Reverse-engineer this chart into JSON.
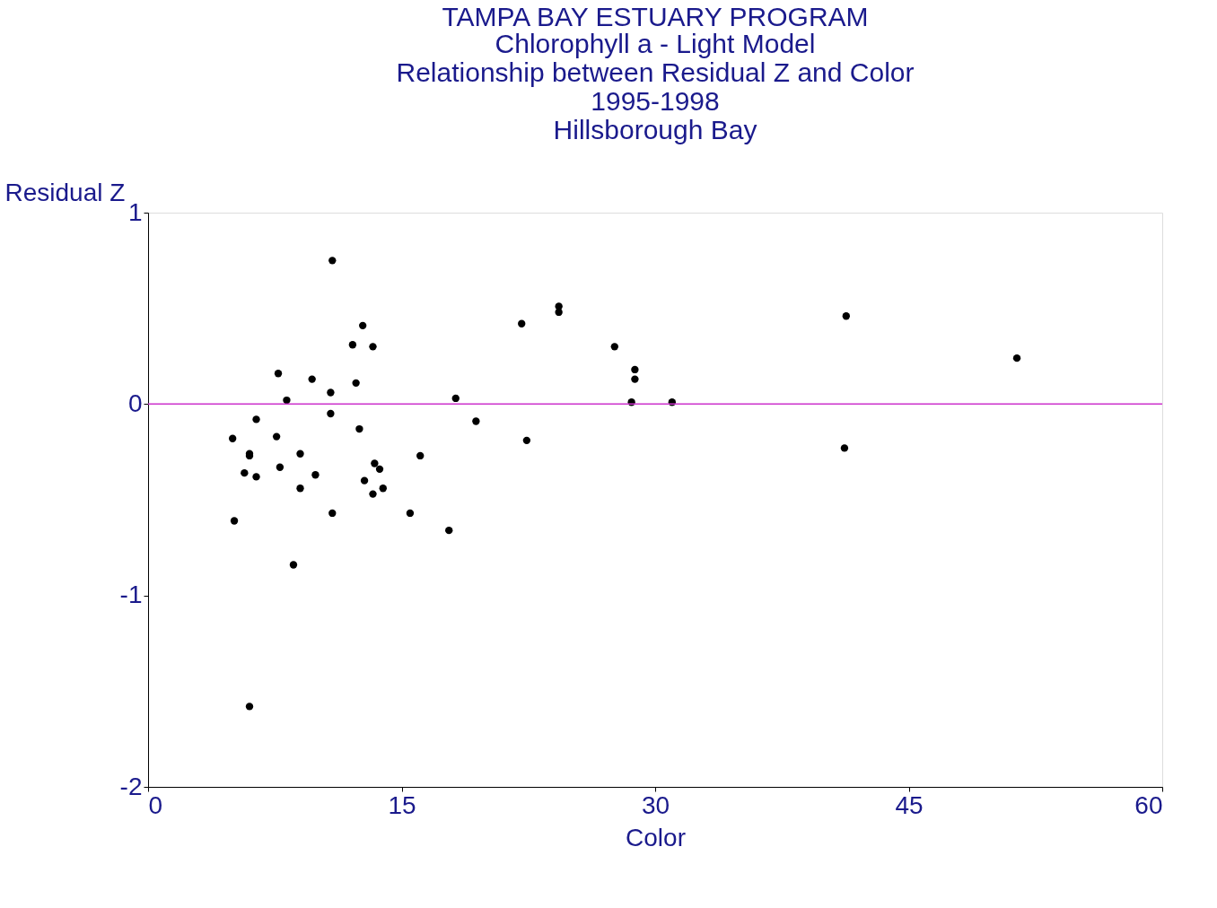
{
  "chart_data": {
    "type": "scatter",
    "title": "TAMPA BAY  ESTUARY PROGRAM",
    "subtitle": [
      "Chlorophyll a - Light Model",
      "Relationship between Residual Z and Color",
      "1995-1998",
      "Hillsborough Bay"
    ],
    "xlabel": "Color",
    "ylabel": "Residual Z",
    "xlim": [
      0,
      60
    ],
    "xticks": [
      0,
      15,
      30,
      45,
      60
    ],
    "ylim": [
      -2,
      1
    ],
    "yticks": [
      -2,
      -1,
      0,
      1
    ],
    "grid": false,
    "marker": "circle",
    "ref_lines": [
      {
        "axis": "y",
        "value": 0,
        "color": "#cc33cc"
      }
    ],
    "series": [
      {
        "color": "#000000",
        "x": [
          10.9,
          12.7,
          12.1,
          13.3,
          7.7,
          9.7,
          12.3,
          10.8,
          8.2,
          10.8,
          6.4,
          5.0,
          7.6,
          12.5,
          6.0,
          6.0,
          9.0,
          7.8,
          13.4,
          13.7,
          5.7,
          6.4,
          9.9,
          12.8,
          9.0,
          13.9,
          13.3,
          10.9,
          5.1,
          15.5,
          16.1,
          17.8,
          8.6,
          6.0,
          18.2,
          19.4,
          22.1,
          22.4,
          24.3,
          24.3,
          27.6,
          28.8,
          28.8,
          28.6,
          31.0,
          41.3,
          41.2,
          51.4
        ],
        "values": [
          0.75,
          0.41,
          0.31,
          0.3,
          0.16,
          0.13,
          0.11,
          0.06,
          0.02,
          -0.05,
          -0.08,
          -0.18,
          -0.17,
          -0.13,
          -0.26,
          -0.27,
          -0.26,
          -0.33,
          -0.31,
          -0.34,
          -0.36,
          -0.38,
          -0.37,
          -0.4,
          -0.44,
          -0.44,
          -0.47,
          -0.57,
          -0.61,
          -0.57,
          -0.27,
          -0.66,
          -0.84,
          -1.58,
          0.03,
          -0.09,
          0.42,
          -0.19,
          0.51,
          0.48,
          0.3,
          0.18,
          0.13,
          0.01,
          0.01,
          0.46,
          -0.23,
          0.24
        ]
      }
    ]
  }
}
